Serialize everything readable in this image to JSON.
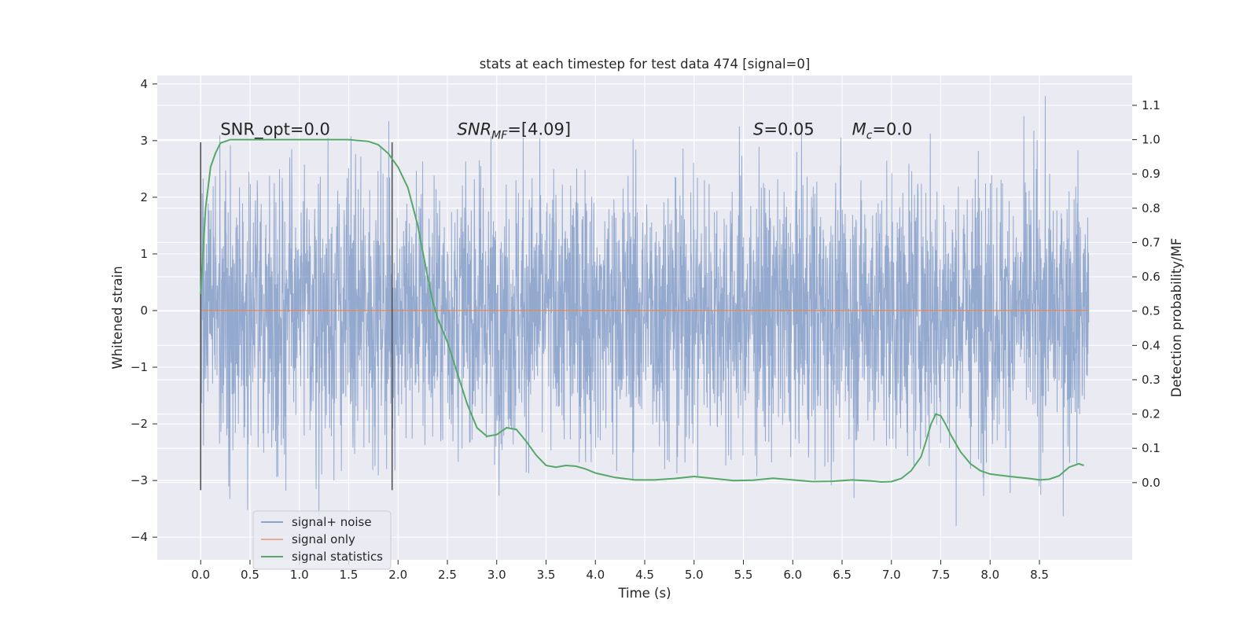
{
  "chart_data": {
    "type": "line",
    "title": "stats at each timestep for test data 474 [signal=0]",
    "xlabel": "Time (s)",
    "ylabel": "Whitened strain",
    "y2label": "Detection probability/MF",
    "xlim": [
      -0.44,
      9.44
    ],
    "ylim": [
      -4.4,
      4.15
    ],
    "y2lim": [
      -0.225,
      1.187
    ],
    "xticks": [
      0.0,
      0.5,
      1.0,
      1.5,
      2.0,
      2.5,
      3.0,
      3.5,
      4.0,
      4.5,
      5.0,
      5.5,
      6.0,
      6.5,
      7.0,
      7.5,
      8.0,
      8.5
    ],
    "xtick_labels": [
      "0.0",
      "0.5",
      "1.0",
      "1.5",
      "2.0",
      "2.5",
      "3.0",
      "3.5",
      "4.0",
      "4.5",
      "5.0",
      "5.5",
      "6.0",
      "6.5",
      "7.0",
      "7.5",
      "8.0",
      "8.5"
    ],
    "yticks": [
      -4,
      -3,
      -2,
      -1,
      0,
      1,
      2,
      3,
      4
    ],
    "ytick_labels": [
      "−4",
      "−3",
      "−2",
      "−1",
      "0",
      "1",
      "2",
      "3",
      "4"
    ],
    "y2ticks": [
      0.0,
      0.1,
      0.2,
      0.3,
      0.4,
      0.5,
      0.6,
      0.7,
      0.8,
      0.9,
      1.0,
      1.1
    ],
    "y2tick_labels": [
      "0.0",
      "0.1",
      "0.2",
      "0.3",
      "0.4",
      "0.5",
      "0.6",
      "0.7",
      "0.8",
      "0.9",
      "1.0",
      "1.1"
    ],
    "grid": true,
    "legend_placement": "lower-left",
    "noise": {
      "x_range": [
        0.0,
        9.0
      ],
      "typical_amplitude": 1.2,
      "max": 3.82,
      "min": -4.0
    },
    "vertical_markers": [
      {
        "x": 0.0,
        "y_range": [
          -3.17,
          2.97
        ]
      },
      {
        "x": 1.94,
        "y_range": [
          -3.17,
          2.97
        ]
      }
    ],
    "series": [
      {
        "name": "signal+ noise",
        "color": "#4c72b0",
        "axis": "left",
        "render": "noise"
      },
      {
        "name": "signal only",
        "color": "#dd8452",
        "axis": "left",
        "x": [
          0.0,
          9.0
        ],
        "y": [
          0.0,
          0.0
        ]
      },
      {
        "name": "signal statistics",
        "color": "#55a868",
        "axis": "right",
        "x": [
          0.0,
          0.05,
          0.1,
          0.15,
          0.2,
          0.3,
          0.5,
          0.8,
          1.0,
          1.3,
          1.5,
          1.7,
          1.8,
          1.9,
          2.0,
          2.1,
          2.2,
          2.3,
          2.35,
          2.4,
          2.5,
          2.6,
          2.7,
          2.8,
          2.9,
          3.0,
          3.1,
          3.2,
          3.3,
          3.4,
          3.5,
          3.6,
          3.7,
          3.8,
          3.9,
          4.0,
          4.2,
          4.4,
          4.6,
          4.8,
          5.0,
          5.2,
          5.4,
          5.6,
          5.8,
          6.0,
          6.2,
          6.4,
          6.6,
          6.8,
          6.9,
          7.0,
          7.1,
          7.2,
          7.3,
          7.35,
          7.4,
          7.45,
          7.5,
          7.55,
          7.6,
          7.7,
          7.8,
          7.9,
          8.0,
          8.2,
          8.4,
          8.5,
          8.6,
          8.7,
          8.8,
          8.9,
          8.95
        ],
        "y": [
          0.55,
          0.8,
          0.92,
          0.96,
          0.99,
          1.0,
          1.0,
          1.0,
          1.0,
          1.0,
          1.0,
          0.995,
          0.985,
          0.96,
          0.92,
          0.86,
          0.75,
          0.6,
          0.53,
          0.48,
          0.41,
          0.32,
          0.23,
          0.16,
          0.135,
          0.14,
          0.16,
          0.155,
          0.12,
          0.08,
          0.05,
          0.045,
          0.05,
          0.048,
          0.04,
          0.028,
          0.015,
          0.008,
          0.008,
          0.012,
          0.018,
          0.012,
          0.006,
          0.007,
          0.013,
          0.008,
          0.003,
          0.004,
          0.008,
          0.005,
          0.002,
          0.003,
          0.012,
          0.035,
          0.075,
          0.12,
          0.17,
          0.2,
          0.195,
          0.17,
          0.14,
          0.09,
          0.055,
          0.035,
          0.025,
          0.018,
          0.012,
          0.008,
          0.01,
          0.02,
          0.045,
          0.055,
          0.05
        ]
      }
    ],
    "annotations": [
      {
        "text": "SNR_opt=0.0",
        "x": 0.2,
        "y": 3.1
      },
      {
        "text": "SNRMF=[4.09]",
        "x": 2.6,
        "y": 3.1
      },
      {
        "text": "S=0.05",
        "x": 5.6,
        "y": 3.1
      },
      {
        "text": "Mc=0.0",
        "x": 6.6,
        "y": 3.1
      }
    ]
  }
}
